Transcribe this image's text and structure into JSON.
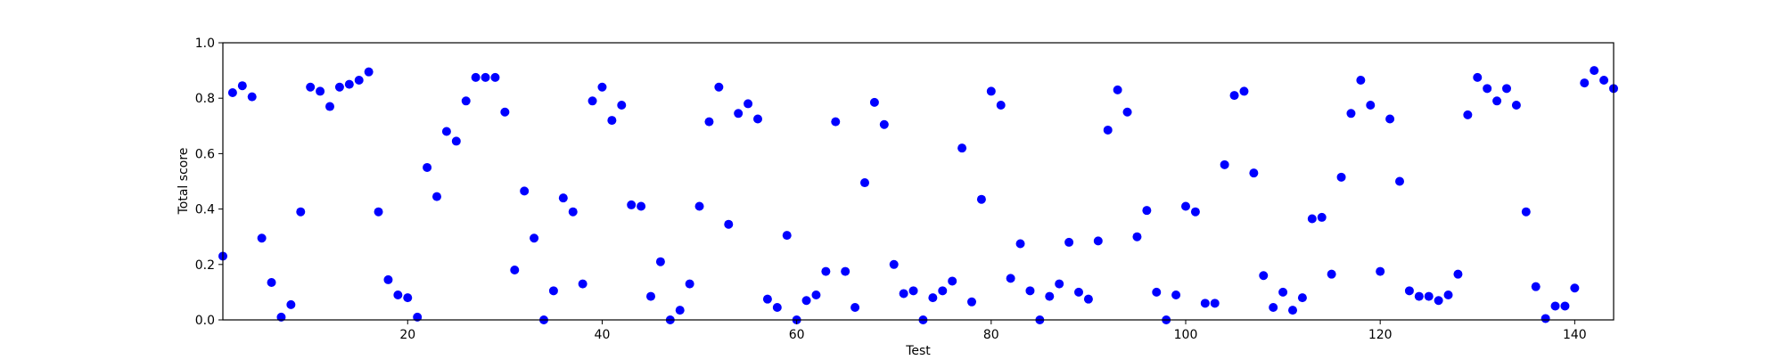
{
  "chart_data": {
    "type": "scatter",
    "title": "",
    "xlabel": "Test",
    "ylabel": "Total score",
    "xlim": [
      1,
      144
    ],
    "ylim": [
      0.0,
      1.0
    ],
    "x_ticks": [
      20,
      40,
      60,
      80,
      100,
      120,
      140
    ],
    "y_ticks": [
      0.0,
      0.2,
      0.4,
      0.6,
      0.8,
      1.0
    ],
    "x_tick_labels": [
      "20",
      "40",
      "60",
      "80",
      "100",
      "120",
      "140"
    ],
    "y_tick_labels": [
      "0.0",
      "0.2",
      "0.4",
      "0.6",
      "0.8",
      "1.0"
    ],
    "grid": false,
    "marker_color": "#0000ff",
    "series": [
      {
        "x": [
          1,
          2,
          3,
          4,
          5,
          6,
          7,
          8,
          9,
          10,
          11,
          12,
          13,
          14,
          15,
          16,
          17,
          18,
          19,
          20,
          21,
          22,
          23,
          24,
          25,
          26,
          27,
          28,
          29,
          30,
          31,
          32,
          33,
          34,
          35,
          36,
          37,
          38,
          39,
          40,
          41,
          42,
          43,
          44,
          45,
          46,
          47,
          48,
          49,
          50,
          51,
          52,
          53,
          54,
          55,
          56,
          57,
          58,
          59,
          60,
          61,
          62,
          63,
          64,
          65,
          66,
          67,
          68,
          69,
          70,
          71,
          72,
          73,
          74,
          75,
          76,
          77,
          78,
          79,
          80,
          81,
          82,
          83,
          84,
          85,
          86,
          87,
          88,
          89,
          90,
          91,
          92,
          93,
          94,
          95,
          96,
          97,
          98,
          99,
          100,
          101,
          102,
          103,
          104,
          105,
          106,
          107,
          108,
          109,
          110,
          111,
          112,
          113,
          114,
          115,
          116,
          117,
          118,
          119,
          120,
          121,
          122,
          123,
          124,
          125,
          126,
          127,
          128,
          129,
          130,
          131,
          132,
          133,
          134,
          135,
          136,
          137,
          138,
          139,
          140,
          141,
          142,
          143,
          144
        ],
        "y": [
          0.23,
          0.82,
          0.845,
          0.805,
          0.295,
          0.135,
          0.01,
          0.055,
          0.39,
          0.84,
          0.825,
          0.77,
          0.84,
          0.85,
          0.865,
          0.895,
          0.39,
          0.145,
          0.09,
          0.08,
          0.01,
          0.55,
          0.445,
          0.68,
          0.645,
          0.79,
          0.875,
          0.875,
          0.875,
          0.75,
          0.18,
          0.465,
          0.295,
          0.0,
          0.105,
          0.44,
          0.39,
          0.13,
          0.79,
          0.84,
          0.72,
          0.775,
          0.415,
          0.41,
          0.085,
          0.21,
          0.0,
          0.035,
          0.13,
          0.41,
          0.715,
          0.84,
          0.345,
          0.745,
          0.78,
          0.725,
          0.075,
          0.045,
          0.305,
          0.0,
          0.07,
          0.09,
          0.175,
          0.715,
          0.175,
          0.045,
          0.495,
          0.785,
          0.705,
          0.2,
          0.095,
          0.105,
          0.0,
          0.08,
          0.105,
          0.14,
          0.62,
          0.065,
          0.435,
          0.825,
          0.775,
          0.15,
          0.275,
          0.105,
          0.0,
          0.085,
          0.13,
          0.28,
          0.1,
          0.075,
          0.285,
          0.685,
          0.83,
          0.75,
          0.3,
          0.395,
          0.1,
          0.0,
          0.09,
          0.41,
          0.39,
          0.06,
          0.06,
          0.56,
          0.81,
          0.825,
          0.53,
          0.16,
          0.045,
          0.1,
          0.035,
          0.08,
          0.365,
          0.37,
          0.165,
          0.515,
          0.745,
          0.865,
          0.775,
          0.175,
          0.725,
          0.5,
          0.105,
          0.085,
          0.085,
          0.07,
          0.09,
          0.165,
          0.74,
          0.875,
          0.835,
          0.79,
          0.835,
          0.775,
          0.39,
          0.12,
          0.005,
          0.05,
          0.05,
          0.115,
          0.855,
          0.9,
          0.865,
          0.835
        ]
      }
    ]
  }
}
